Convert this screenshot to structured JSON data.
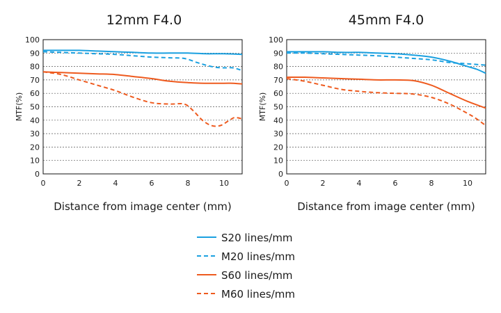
{
  "colors": {
    "S20": "#1aa0e0",
    "M20": "#1aa0e0",
    "S60": "#ee5a1e",
    "M60": "#ee5a1e"
  },
  "chart_data": [
    {
      "type": "line",
      "title": "12mm F4.0",
      "xlabel": "Distance from image center (mm)",
      "ylabel": "MTF(%)",
      "xlim": [
        0,
        11
      ],
      "ylim": [
        0,
        100
      ],
      "xticks": [
        "0",
        "2",
        "4",
        "6",
        "8",
        "10"
      ],
      "yticks": [
        "0",
        "10",
        "20",
        "30",
        "40",
        "50",
        "60",
        "70",
        "80",
        "90",
        "100"
      ],
      "grid": true,
      "series": [
        {
          "name": "S20 lines/mm",
          "style": "solid",
          "color": "#1aa0e0",
          "points": [
            [
              0,
              92
            ],
            [
              1,
              92
            ],
            [
              2,
              92
            ],
            [
              3,
              91.5
            ],
            [
              4,
              91
            ],
            [
              5,
              90.5
            ],
            [
              6,
              90
            ],
            [
              7,
              90
            ],
            [
              8,
              90
            ],
            [
              9,
              89.5
            ],
            [
              10,
              89.5
            ],
            [
              11,
              89
            ]
          ]
        },
        {
          "name": "M20 lines/mm",
          "style": "dashed",
          "color": "#1aa0e0",
          "points": [
            [
              0,
              91
            ],
            [
              1,
              90.5
            ],
            [
              2,
              90
            ],
            [
              3,
              89.5
            ],
            [
              4,
              89
            ],
            [
              5,
              88
            ],
            [
              6,
              87
            ],
            [
              7,
              86.5
            ],
            [
              7.8,
              86
            ],
            [
              8.5,
              83
            ],
            [
              9,
              81
            ],
            [
              9.5,
              79.5
            ],
            [
              10,
              79
            ],
            [
              10.5,
              79
            ],
            [
              11,
              77
            ]
          ]
        },
        {
          "name": "S60 lines/mm",
          "style": "solid",
          "color": "#ee5a1e",
          "points": [
            [
              0,
              76
            ],
            [
              1,
              75.5
            ],
            [
              2,
              75
            ],
            [
              3,
              74.5
            ],
            [
              4,
              74
            ],
            [
              5,
              72.5
            ],
            [
              6,
              71
            ],
            [
              7,
              69
            ],
            [
              8,
              68
            ],
            [
              9,
              67.5
            ],
            [
              10,
              67.5
            ],
            [
              10.5,
              67.5
            ],
            [
              11,
              67
            ]
          ]
        },
        {
          "name": "M60 lines/mm",
          "style": "dashed",
          "color": "#ee5a1e",
          "points": [
            [
              0,
              76
            ],
            [
              1,
              74
            ],
            [
              2,
              70
            ],
            [
              3,
              66
            ],
            [
              4,
              62
            ],
            [
              5,
              57
            ],
            [
              6,
              53
            ],
            [
              7,
              52
            ],
            [
              7.8,
              52
            ],
            [
              8.3,
              47
            ],
            [
              8.8,
              40
            ],
            [
              9.3,
              36
            ],
            [
              9.8,
              36
            ],
            [
              10.3,
              40
            ],
            [
              10.6,
              42
            ],
            [
              11,
              41
            ]
          ]
        }
      ]
    },
    {
      "type": "line",
      "title": "45mm F4.0",
      "xlabel": "Distance from image center (mm)",
      "ylabel": "MTF(%)",
      "xlim": [
        0,
        11
      ],
      "ylim": [
        0,
        100
      ],
      "xticks": [
        "0",
        "2",
        "4",
        "6",
        "8",
        "10"
      ],
      "yticks": [
        "0",
        "10",
        "20",
        "30",
        "40",
        "50",
        "60",
        "70",
        "80",
        "90",
        "100"
      ],
      "grid": true,
      "series": [
        {
          "name": "S20 lines/mm",
          "style": "solid",
          "color": "#1aa0e0",
          "points": [
            [
              0,
              91
            ],
            [
              1,
              91
            ],
            [
              2,
              91
            ],
            [
              3,
              90.5
            ],
            [
              4,
              90.5
            ],
            [
              5,
              90
            ],
            [
              6,
              89.5
            ],
            [
              7,
              88.5
            ],
            [
              8,
              87
            ],
            [
              9,
              84
            ],
            [
              10,
              80
            ],
            [
              10.5,
              78
            ],
            [
              11,
              75
            ]
          ]
        },
        {
          "name": "M20 lines/mm",
          "style": "dashed",
          "color": "#1aa0e0",
          "points": [
            [
              0,
              90
            ],
            [
              1,
              90
            ],
            [
              2,
              89.5
            ],
            [
              3,
              89
            ],
            [
              4,
              88.5
            ],
            [
              5,
              88
            ],
            [
              6,
              87
            ],
            [
              7,
              86
            ],
            [
              8,
              85
            ],
            [
              9,
              83
            ],
            [
              10,
              82
            ],
            [
              11,
              81
            ]
          ]
        },
        {
          "name": "S60 lines/mm",
          "style": "solid",
          "color": "#ee5a1e",
          "points": [
            [
              0,
              72
            ],
            [
              1,
              72
            ],
            [
              2,
              71.5
            ],
            [
              3,
              71
            ],
            [
              4,
              70.5
            ],
            [
              5,
              70
            ],
            [
              6,
              70
            ],
            [
              7,
              69.5
            ],
            [
              8,
              66
            ],
            [
              9,
              60
            ],
            [
              10,
              54
            ],
            [
              11,
              49
            ]
          ]
        },
        {
          "name": "M60 lines/mm",
          "style": "dashed",
          "color": "#ee5a1e",
          "points": [
            [
              0,
              71
            ],
            [
              1,
              69
            ],
            [
              2,
              66
            ],
            [
              3,
              63
            ],
            [
              4,
              61.5
            ],
            [
              5,
              60.5
            ],
            [
              6,
              60
            ],
            [
              7,
              59.5
            ],
            [
              8,
              57
            ],
            [
              9,
              52
            ],
            [
              10,
              45
            ],
            [
              10.5,
              41
            ],
            [
              11,
              36
            ]
          ]
        }
      ]
    }
  ],
  "legend": [
    {
      "label": "S20 lines/mm",
      "style": "solid",
      "color": "#1aa0e0"
    },
    {
      "label": "M20 lines/mm",
      "style": "dashed",
      "color": "#1aa0e0"
    },
    {
      "label": "S60 lines/mm",
      "style": "solid",
      "color": "#ee5a1e"
    },
    {
      "label": "M60 lines/mm",
      "style": "dashed",
      "color": "#ee5a1e"
    }
  ]
}
